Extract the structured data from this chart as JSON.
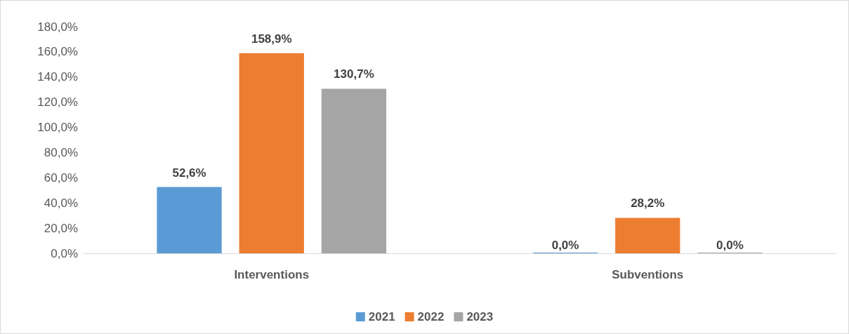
{
  "chart_data": {
    "type": "bar",
    "categories": [
      "Interventions",
      "Subventions"
    ],
    "series": [
      {
        "name": "2021",
        "color": "#5b9bd5",
        "values": [
          52.6,
          0.0
        ],
        "value_labels": [
          "52,6%",
          "0,0%"
        ]
      },
      {
        "name": "2022",
        "color": "#ed7d31",
        "values": [
          158.9,
          28.2
        ],
        "value_labels": [
          "158,9%",
          "28,2%"
        ]
      },
      {
        "name": "2023",
        "color": "#a5a5a5",
        "values": [
          130.7,
          0.0
        ],
        "value_labels": [
          "130,7%",
          "0,0%"
        ]
      }
    ],
    "ylim": [
      0,
      180
    ],
    "yticks": [
      {
        "value": 0,
        "label": "0,0%"
      },
      {
        "value": 20,
        "label": "20,0%"
      },
      {
        "value": 40,
        "label": "40,0%"
      },
      {
        "value": 60,
        "label": "60,0%"
      },
      {
        "value": 80,
        "label": "80,0%"
      },
      {
        "value": 100,
        "label": "100,0%"
      },
      {
        "value": 120,
        "label": "120,0%"
      },
      {
        "value": 140,
        "label": "140,0%"
      },
      {
        "value": 160,
        "label": "160,0%"
      },
      {
        "value": 180,
        "label": "180,0%"
      }
    ],
    "grid": false,
    "legend": "bottom"
  }
}
